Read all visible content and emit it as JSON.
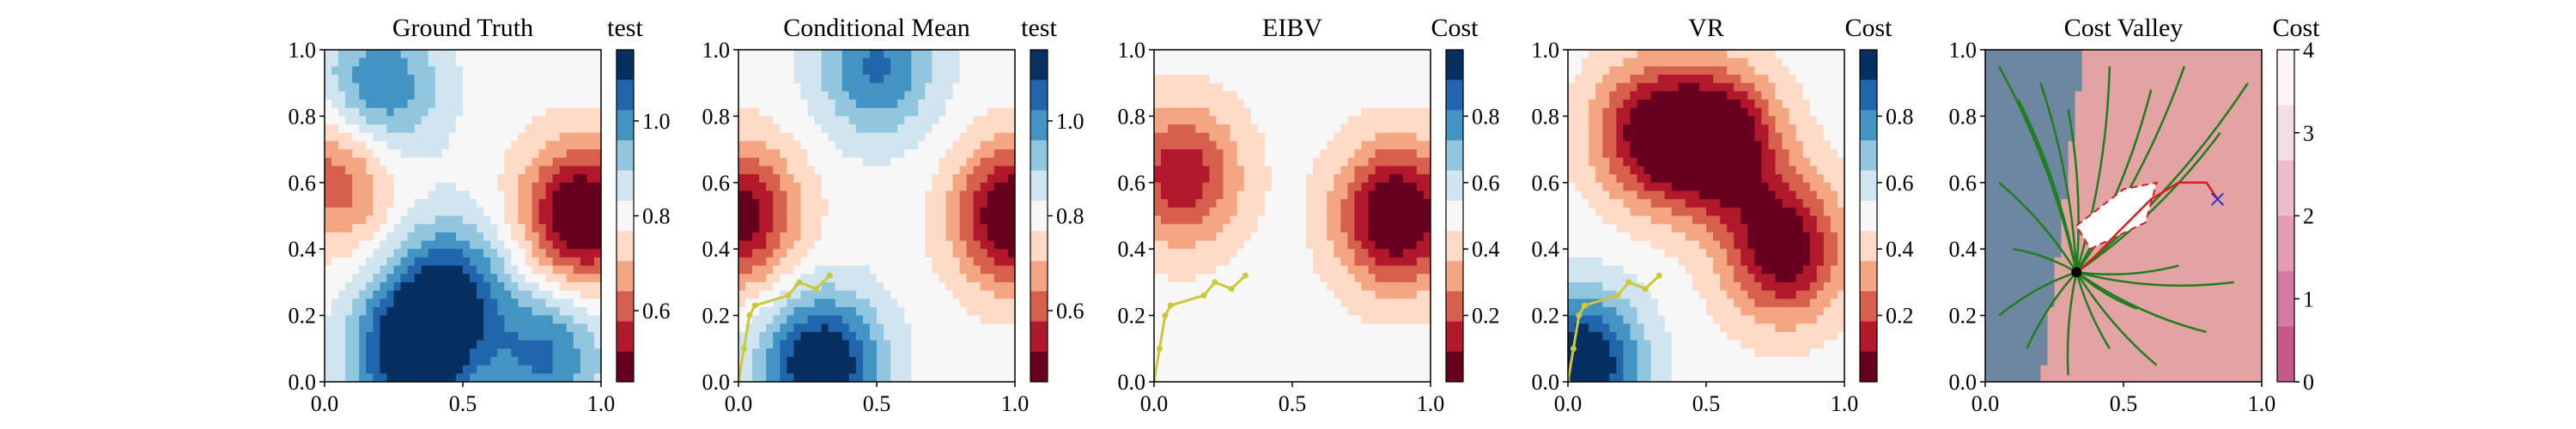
{
  "chart_data": [
    {
      "type": "heatmap",
      "title": "Ground Truth",
      "colorbar_label": "test",
      "xlim": [
        0,
        1
      ],
      "ylim": [
        0,
        1
      ],
      "xticks": [
        "0.0",
        "0.5",
        "1.0"
      ],
      "yticks": [
        "0.0",
        "0.2",
        "0.4",
        "0.6",
        "0.8",
        "1.0"
      ],
      "colorbar_ticks": [
        "0.6",
        "0.8",
        "1.0"
      ],
      "colorbar_range": [
        0.45,
        1.15
      ],
      "colormap": "RdBu",
      "features": [
        {
          "kind": "hot",
          "x": 0.93,
          "y": 0.5,
          "strength": 1.0
        },
        {
          "kind": "hot",
          "x": 0.05,
          "y": 0.62,
          "strength": 0.55
        },
        {
          "kind": "cold",
          "x": 0.32,
          "y": 0.08,
          "strength": 1.0
        },
        {
          "kind": "cold",
          "x": 0.45,
          "y": 0.28,
          "strength": 0.7
        },
        {
          "kind": "cold",
          "x": 0.8,
          "y": 0.08,
          "strength": 0.6
        },
        {
          "kind": "cold",
          "x": 0.2,
          "y": 0.88,
          "strength": 0.6
        }
      ]
    },
    {
      "type": "heatmap",
      "title": "Conditional Mean",
      "colorbar_label": "test",
      "xlim": [
        0,
        1
      ],
      "ylim": [
        0,
        1
      ],
      "xticks": [
        "0.0",
        "0.5",
        "1.0"
      ],
      "yticks": [
        "0.0",
        "0.2",
        "0.4",
        "0.6",
        "0.8",
        "1.0"
      ],
      "colorbar_ticks": [
        "0.6",
        "0.8",
        "1.0"
      ],
      "colorbar_range": [
        0.45,
        1.15
      ],
      "colormap": "RdBu",
      "features": [
        {
          "kind": "hot",
          "x": 1.0,
          "y": 0.5,
          "strength": 1.0
        },
        {
          "kind": "hot",
          "x": 0.0,
          "y": 0.5,
          "strength": 0.85
        },
        {
          "kind": "cold",
          "x": 0.3,
          "y": 0.05,
          "strength": 1.0
        },
        {
          "kind": "cold",
          "x": 0.5,
          "y": 0.95,
          "strength": 0.6
        }
      ],
      "path": [
        [
          0,
          0
        ],
        [
          0.02,
          0.1
        ],
        [
          0.04,
          0.2
        ],
        [
          0.06,
          0.23
        ],
        [
          0.18,
          0.26
        ],
        [
          0.22,
          0.3
        ],
        [
          0.28,
          0.28
        ],
        [
          0.33,
          0.32
        ]
      ],
      "path_color": "#c9c93a"
    },
    {
      "type": "heatmap",
      "title": "EIBV",
      "colorbar_label": "Cost",
      "xlim": [
        0,
        1
      ],
      "ylim": [
        0,
        1
      ],
      "xticks": [
        "0.0",
        "0.5",
        "1.0"
      ],
      "yticks": [
        "0.0",
        "0.2",
        "0.4",
        "0.6",
        "0.8",
        "1.0"
      ],
      "colorbar_ticks": [
        "0.2",
        "0.4",
        "0.6",
        "0.8"
      ],
      "colorbar_range": [
        0,
        1
      ],
      "colormap": "RdBu",
      "features": [
        {
          "kind": "hot",
          "x": 0.88,
          "y": 0.5,
          "strength": 1.0
        },
        {
          "kind": "hot",
          "x": 0.1,
          "y": 0.62,
          "strength": 0.7
        }
      ],
      "path": [
        [
          0,
          0
        ],
        [
          0.02,
          0.1
        ],
        [
          0.04,
          0.2
        ],
        [
          0.06,
          0.23
        ],
        [
          0.18,
          0.26
        ],
        [
          0.22,
          0.3
        ],
        [
          0.28,
          0.28
        ],
        [
          0.33,
          0.32
        ]
      ],
      "path_color": "#c9c93a"
    },
    {
      "type": "heatmap",
      "title": "VR",
      "colorbar_label": "Cost",
      "xlim": [
        0,
        1
      ],
      "ylim": [
        0,
        1
      ],
      "xticks": [
        "0.0",
        "0.5",
        "1.0"
      ],
      "yticks": [
        "0.0",
        "0.2",
        "0.4",
        "0.6",
        "0.8",
        "1.0"
      ],
      "colorbar_ticks": [
        "0.2",
        "0.4",
        "0.6",
        "0.8"
      ],
      "colorbar_range": [
        0,
        1
      ],
      "colormap": "RdBu",
      "features": [
        {
          "kind": "hot",
          "x": 0.55,
          "y": 0.72,
          "strength": 1.0
        },
        {
          "kind": "hot",
          "x": 0.78,
          "y": 0.4,
          "strength": 0.9
        },
        {
          "kind": "hot",
          "x": 0.3,
          "y": 0.75,
          "strength": 0.8
        },
        {
          "kind": "cold",
          "x": 0.05,
          "y": 0.05,
          "strength": 1.0
        }
      ],
      "path": [
        [
          0,
          0
        ],
        [
          0.02,
          0.1
        ],
        [
          0.04,
          0.2
        ],
        [
          0.06,
          0.23
        ],
        [
          0.18,
          0.26
        ],
        [
          0.22,
          0.3
        ],
        [
          0.28,
          0.28
        ],
        [
          0.33,
          0.32
        ]
      ],
      "path_color": "#c9c93a"
    },
    {
      "type": "heatmap",
      "title": "Cost Valley",
      "colorbar_label": "Cost",
      "xlim": [
        0,
        1
      ],
      "ylim": [
        0,
        1
      ],
      "xticks": [
        "0.0",
        "0.5",
        "1.0"
      ],
      "yticks": [
        "0.0",
        "0.2",
        "0.4",
        "0.6",
        "0.8",
        "1.0"
      ],
      "colorbar_ticks": [
        "0",
        "1",
        "2",
        "3",
        "4"
      ],
      "colorbar_range": [
        0,
        4
      ],
      "colormap": "PuRd",
      "background_low": "#6e87a0",
      "background_high": "#e4a3a3",
      "tree_color": "#1e7d1e",
      "tree_root": [
        0.33,
        0.33
      ],
      "valley_polygon": [
        [
          0.33,
          0.47
        ],
        [
          0.5,
          0.58
        ],
        [
          0.62,
          0.6
        ],
        [
          0.58,
          0.48
        ],
        [
          0.38,
          0.4
        ]
      ],
      "red_path": [
        [
          0.33,
          0.33
        ],
        [
          0.4,
          0.38
        ],
        [
          0.48,
          0.45
        ],
        [
          0.6,
          0.55
        ],
        [
          0.7,
          0.6
        ],
        [
          0.8,
          0.6
        ],
        [
          0.84,
          0.55
        ]
      ],
      "goal_marker": [
        0.84,
        0.55
      ],
      "red_color": "#d42020",
      "goal_color": "#3030d0"
    }
  ]
}
